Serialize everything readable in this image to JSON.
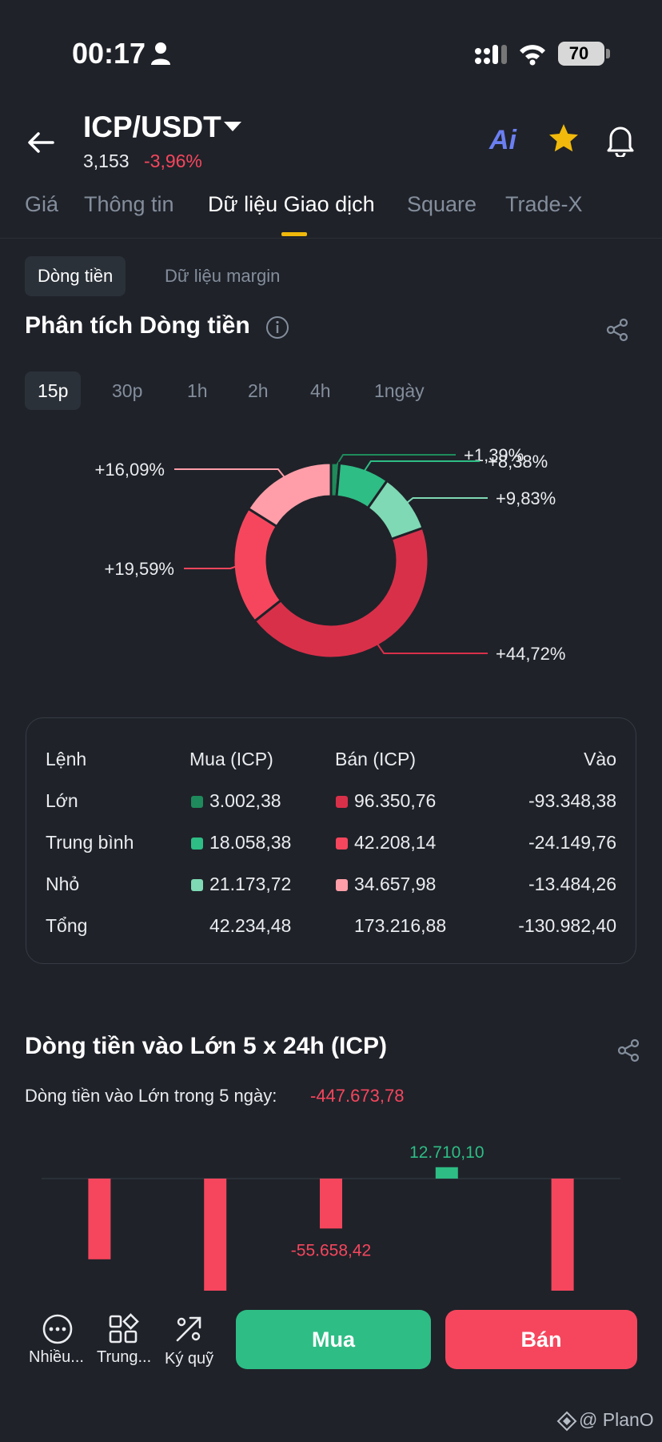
{
  "status_bar": {
    "time": "00:17",
    "battery": "70"
  },
  "header": {
    "pair": "ICP/USDT",
    "price": "3,153",
    "change": "-3,96%",
    "ai_label": "Ai"
  },
  "tabs": [
    "Giá",
    "Thông tin",
    "Dữ liệu Giao dịch",
    "Square",
    "Trade-X"
  ],
  "active_tab": "Dữ liệu Giao dịch",
  "subtabs": [
    "Dòng tiền",
    "Dữ liệu margin"
  ],
  "section1": {
    "title": "Phân tích Dòng tiền"
  },
  "periods": [
    "15p",
    "30p",
    "1h",
    "2h",
    "4h",
    "1ngày"
  ],
  "active_period": "15p",
  "colors": {
    "buy_large": "#1f8a5b",
    "buy_medium": "#2ebd85",
    "buy_small": "#7ed9b4",
    "sell_large": "#d9304a",
    "sell_medium": "#f6465d",
    "sell_small": "#ff9ea8",
    "accent": "#f0b90b"
  },
  "chart_data": [
    {
      "type": "pie",
      "title": "",
      "categories": [
        "Mua Lớn",
        "Mua Trung bình",
        "Mua Nhỏ",
        "Bán Lớn",
        "Bán Trung bình",
        "Bán Nhỏ"
      ],
      "values": [
        1.39,
        8.38,
        9.83,
        44.72,
        19.59,
        16.09
      ],
      "labels": [
        "+1,39%",
        "+8,38%",
        "+9,83%",
        "+44,72%",
        "+19,59%",
        "+16,09%"
      ],
      "colors": [
        "#1f8a5b",
        "#2ebd85",
        "#7ed9b4",
        "#d9304a",
        "#f6465d",
        "#ff9ea8"
      ]
    },
    {
      "type": "bar",
      "title": "Dòng tiền vào Lớn 5 x 24h (ICP)",
      "categories": [
        "1",
        "2",
        "3",
        "4",
        "5"
      ],
      "values": [
        -90000,
        -125000,
        -55658.42,
        12710.1,
        -125000
      ],
      "value_labels": [
        "",
        "",
        "-55.658,42",
        "12.710,10",
        ""
      ]
    }
  ],
  "table": {
    "headers": [
      "Lệnh",
      "Mua (ICP)",
      "Bán (ICP)",
      "Vào"
    ],
    "rows": [
      {
        "label": "Lớn",
        "buy": "3.002,38",
        "sell": "96.350,76",
        "net": "-93.348,38"
      },
      {
        "label": "Trung bình",
        "buy": "18.058,38",
        "sell": "42.208,14",
        "net": "-24.149,76"
      },
      {
        "label": "Nhỏ",
        "buy": "21.173,72",
        "sell": "34.657,98",
        "net": "-13.484,26"
      },
      {
        "label": "Tổng",
        "buy": "42.234,48",
        "sell": "173.216,88",
        "net": "-130.982,40"
      }
    ]
  },
  "section2": {
    "title": "Dòng tiền vào Lớn 5 x 24h (ICP)",
    "summary_label": "Dòng tiền vào Lớn trong 5 ngày:",
    "summary_value": "-447.673,78"
  },
  "bottom_bar": {
    "more": "Nhiều...",
    "trading": "Trung...",
    "margin": "Ký quỹ",
    "buy": "Mua",
    "sell": "Bán"
  },
  "watermark": "@ PlanO"
}
